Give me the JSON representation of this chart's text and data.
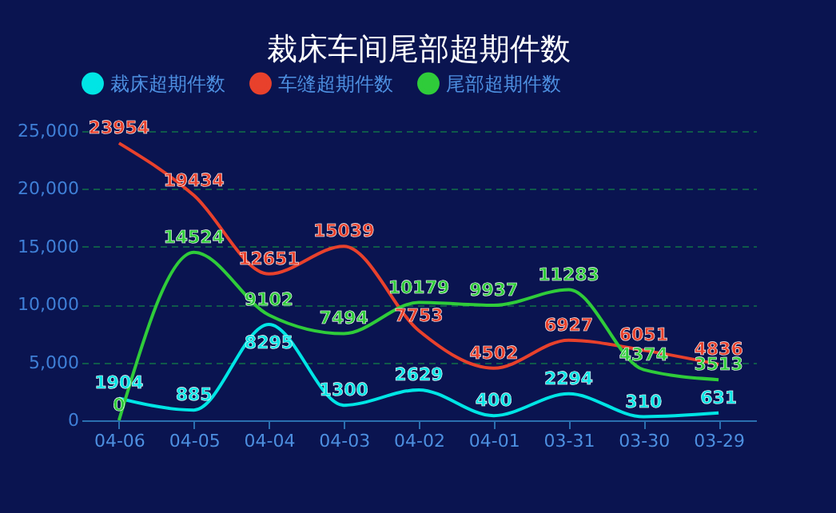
{
  "chart_data": {
    "type": "line",
    "title": "裁床车间尾部超期件数",
    "categories": [
      "04-06",
      "04-05",
      "04-04",
      "04-03",
      "04-02",
      "04-01",
      "03-31",
      "03-30",
      "03-29"
    ],
    "series": [
      {
        "name": "裁床超期件数",
        "color": "#00e5e5",
        "values": [
          1904,
          885,
          8295,
          1300,
          2629,
          400,
          2294,
          310,
          631
        ]
      },
      {
        "name": "车缝超期件数",
        "color": "#e8412c",
        "values": [
          23954,
          19434,
          12651,
          15039,
          7753,
          4502,
          6927,
          6051,
          4836
        ]
      },
      {
        "name": "尾部超期件数",
        "color": "#2fcc3a",
        "values": [
          0,
          14524,
          9102,
          7494,
          10179,
          9937,
          11283,
          4374,
          3513
        ]
      }
    ],
    "ylim": [
      0,
      25000
    ],
    "yticks": [
      {
        "value": 0,
        "label": "0"
      },
      {
        "value": 5000,
        "label": "5,000"
      },
      {
        "value": 10000,
        "label": "10,000"
      },
      {
        "value": 15000,
        "label": "15,000"
      },
      {
        "value": 20000,
        "label": "20,000"
      },
      {
        "value": 25000,
        "label": "25,000"
      }
    ],
    "grid": "y",
    "legend": "top",
    "data_labels": true,
    "marker": "none",
    "line_style": "solid"
  }
}
